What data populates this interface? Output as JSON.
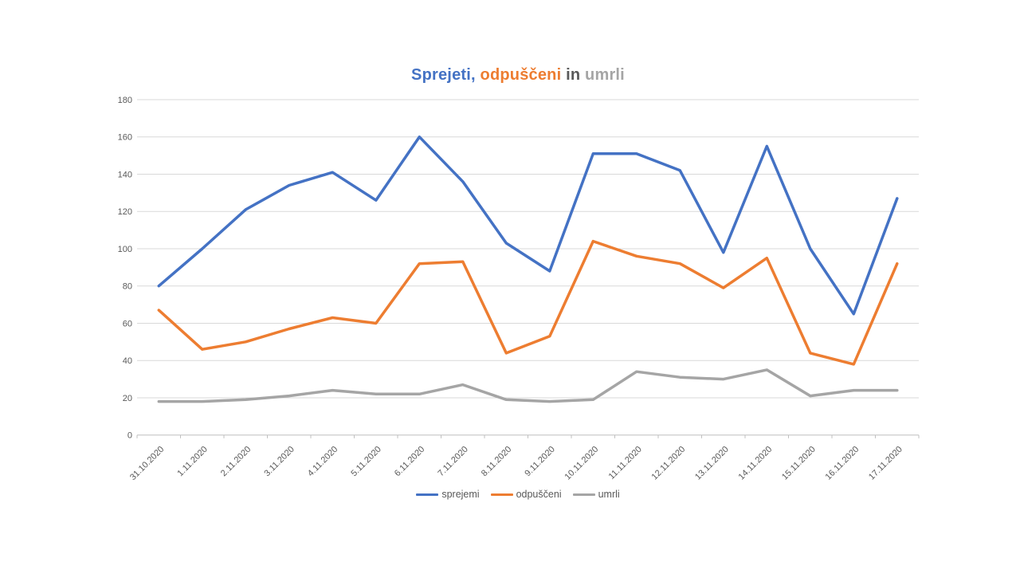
{
  "page": {
    "background": "#ffffff"
  },
  "chart_data": {
    "type": "line",
    "title": "Sprejeti, odpuščeni in umrli",
    "title_segments": [
      {
        "text": "Sprejeti,",
        "color": "#4472C4"
      },
      {
        "text": " odpuščeni",
        "color": "#ED7D31"
      },
      {
        "text": " in",
        "color": "#595959"
      },
      {
        "text": " umrli",
        "color": "#A5A5A5"
      }
    ],
    "categories": [
      "31.10.2020",
      "1.11.2020",
      "2.11.2020",
      "3.11.2020",
      "4.11.2020",
      "5.11.2020",
      "6.11.2020",
      "7.11.2020",
      "8.11.2020",
      "9.11.2020",
      "10.11.2020",
      "11.11.2020",
      "12.11.2020",
      "13.11.2020",
      "14.11.2020",
      "15.11.2020",
      "16.11.2020",
      "17.11.2020"
    ],
    "series": [
      {
        "name": "sprejemi",
        "color": "#4472C4",
        "values": [
          80,
          100,
          121,
          134,
          141,
          126,
          160,
          136,
          103,
          88,
          151,
          151,
          142,
          98,
          155,
          100,
          65,
          127
        ]
      },
      {
        "name": "odpuščeni",
        "color": "#ED7D31",
        "values": [
          67,
          46,
          50,
          57,
          63,
          60,
          92,
          93,
          44,
          53,
          104,
          96,
          92,
          79,
          95,
          44,
          38,
          92
        ]
      },
      {
        "name": "umrli",
        "color": "#A5A5A5",
        "values": [
          18,
          18,
          19,
          21,
          24,
          22,
          22,
          27,
          19,
          18,
          19,
          34,
          31,
          30,
          35,
          21,
          24,
          24
        ]
      }
    ],
    "y_axis": {
      "min": 0,
      "max": 180,
      "step": 20,
      "ticks": [
        0,
        20,
        40,
        60,
        80,
        100,
        120,
        140,
        160,
        180
      ]
    },
    "x_axis": {
      "tick_marks": true
    },
    "legend": {
      "position": "bottom",
      "entries": [
        "sprejemi",
        "odpuščeni",
        "umrli"
      ]
    },
    "grid": true,
    "styles": {
      "grid_color": "#D9D9D9",
      "axis_line_color": "#BFBFBF",
      "axis_text_color": "#595959"
    }
  }
}
